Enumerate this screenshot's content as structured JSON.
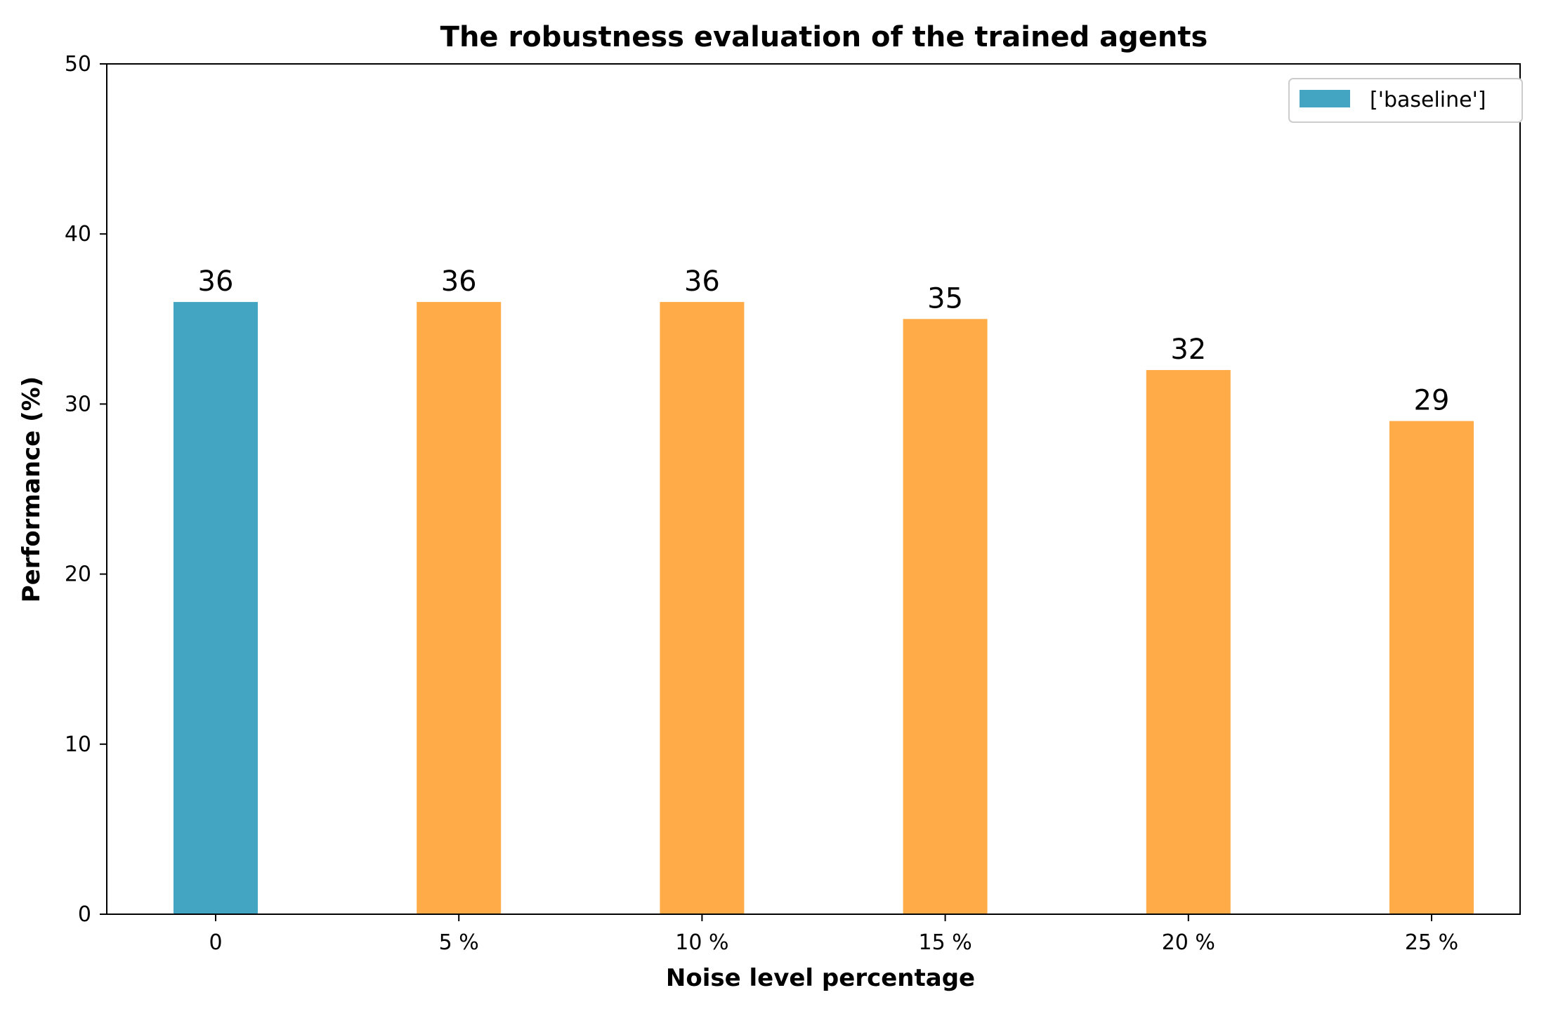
{
  "chart_data": {
    "type": "bar",
    "title": "The robustness evaluation of the trained agents",
    "xlabel": "Noise level percentage",
    "ylabel": "Performance (%)",
    "categories": [
      "0",
      "5 %",
      "10 %",
      "15 %",
      "20 %",
      "25 %"
    ],
    "values": [
      36,
      36,
      36,
      35,
      32,
      29
    ],
    "data_labels": [
      "36",
      "36",
      "36",
      "35",
      "32",
      "29"
    ],
    "ylim": [
      0,
      50
    ],
    "yticks": [
      0,
      10,
      20,
      30,
      40,
      50
    ],
    "ytick_labels": [
      "0",
      "10",
      "20",
      "30",
      "40",
      "50"
    ],
    "grid": false,
    "legend": {
      "placement": "top-right",
      "entries": [
        {
          "label": "['baseline']",
          "color": "#44a5c2"
        }
      ]
    },
    "colors": {
      "baseline": "#44a5c2",
      "noise": "#ffab48"
    }
  }
}
